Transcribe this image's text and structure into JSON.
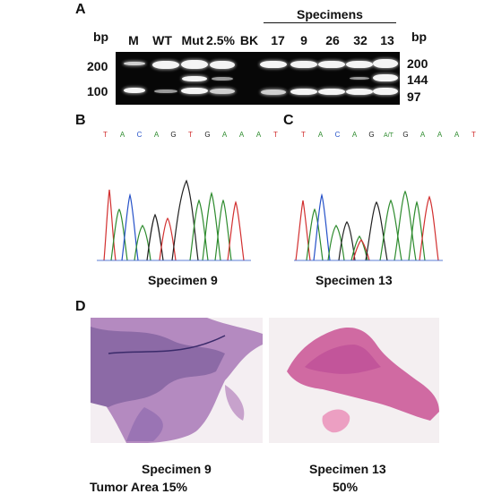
{
  "panels": {
    "a": "A",
    "b": "B",
    "c": "C",
    "d": "D"
  },
  "gel": {
    "bp_unit_left": "bp",
    "bp_unit_right": "bp",
    "specimens_header": "Specimens",
    "lanes": [
      "M",
      "WT",
      "Mut",
      "2.5%",
      "BK",
      "17",
      "9",
      "26",
      "32",
      "13"
    ],
    "left_markers": [
      "200",
      "100"
    ],
    "right_markers": [
      "200",
      "144",
      "97"
    ]
  },
  "chromatograms": [
    {
      "sequence": [
        "T",
        "A",
        "C",
        "A",
        "G",
        "T",
        "G",
        "A",
        "A",
        "A",
        "T"
      ],
      "caption": "Specimen 9"
    },
    {
      "sequence": [
        "T",
        "A",
        "C",
        "A",
        "G",
        "A/T",
        "G",
        "A",
        "A",
        "A",
        "T"
      ],
      "caption": "Specimen 13"
    }
  ],
  "histology": [
    {
      "caption": "Specimen 9"
    },
    {
      "caption": "Specimen 13"
    }
  ],
  "tumor_area": {
    "label": "Tumor Area 15%",
    "second": "50%"
  },
  "colors": {
    "A": "#2e8b2e",
    "C": "#2450c8",
    "G": "#222222",
    "T": "#d23030",
    "he_pink": "#d26aa0",
    "he_purple": "#6f4e9c"
  }
}
